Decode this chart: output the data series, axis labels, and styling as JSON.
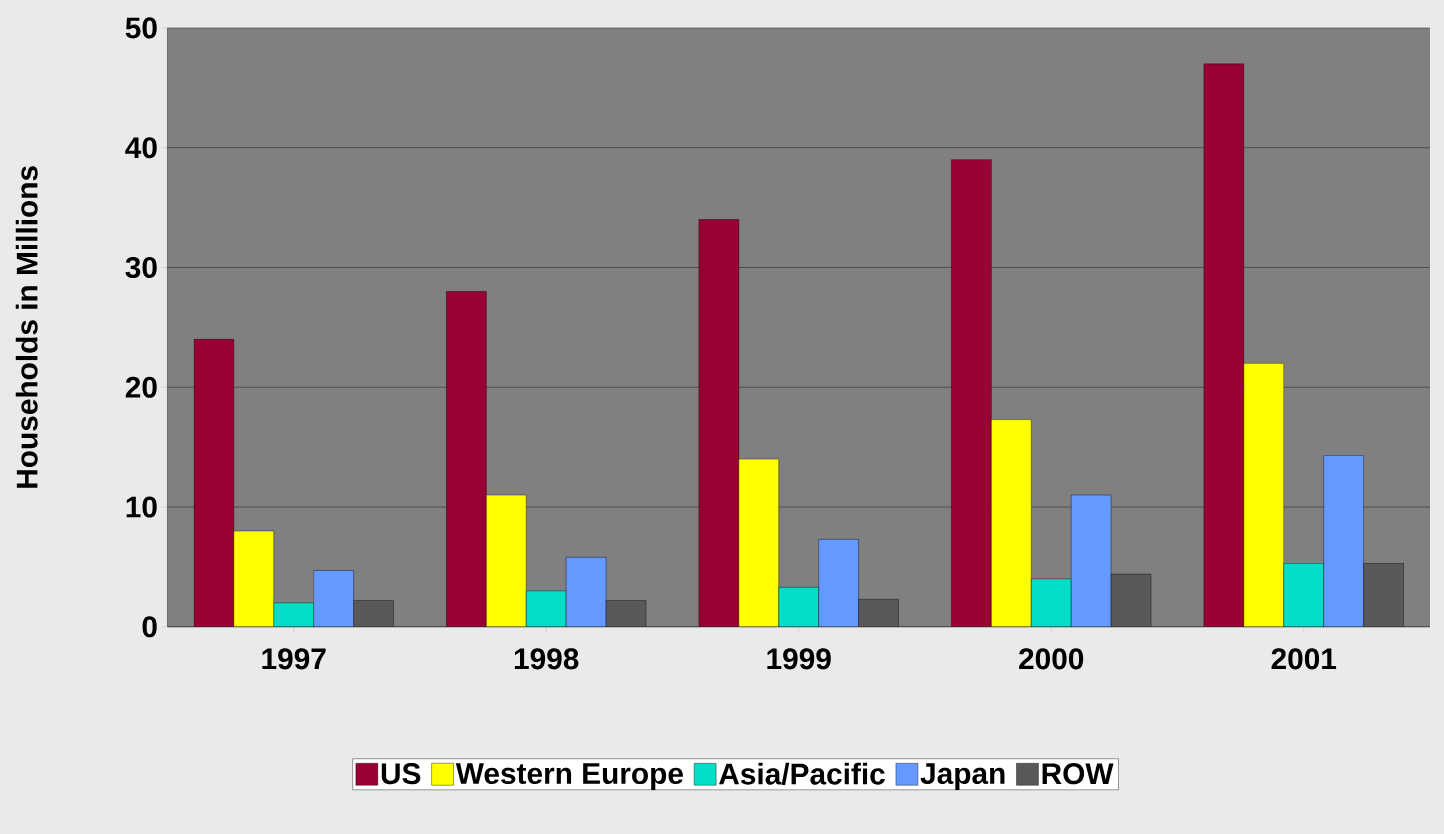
{
  "chart_data": {
    "type": "bar",
    "ylabel": "Households in Millions",
    "categories": [
      "1997",
      "1998",
      "1999",
      "2000",
      "2001"
    ],
    "series": [
      {
        "name": "US",
        "color": "#990033",
        "values": [
          24,
          28,
          34,
          39,
          47
        ]
      },
      {
        "name": "Western Europe",
        "color": "#ffff00",
        "values": [
          8,
          11,
          14,
          17.3,
          22
        ]
      },
      {
        "name": "Asia/Pacific",
        "color": "#00dfc6",
        "values": [
          2,
          3,
          3.3,
          4,
          5.3
        ]
      },
      {
        "name": "Japan",
        "color": "#6699ff",
        "values": [
          4.7,
          5.8,
          7.3,
          11,
          14.3
        ]
      },
      {
        "name": "ROW",
        "color": "#595959",
        "values": [
          2.2,
          2.2,
          2.3,
          4.4,
          5.3
        ]
      }
    ],
    "ylim": [
      0,
      50
    ],
    "yticks": [
      0,
      10,
      20,
      30,
      40,
      50
    ],
    "grid": "y",
    "legend": "bottom"
  }
}
